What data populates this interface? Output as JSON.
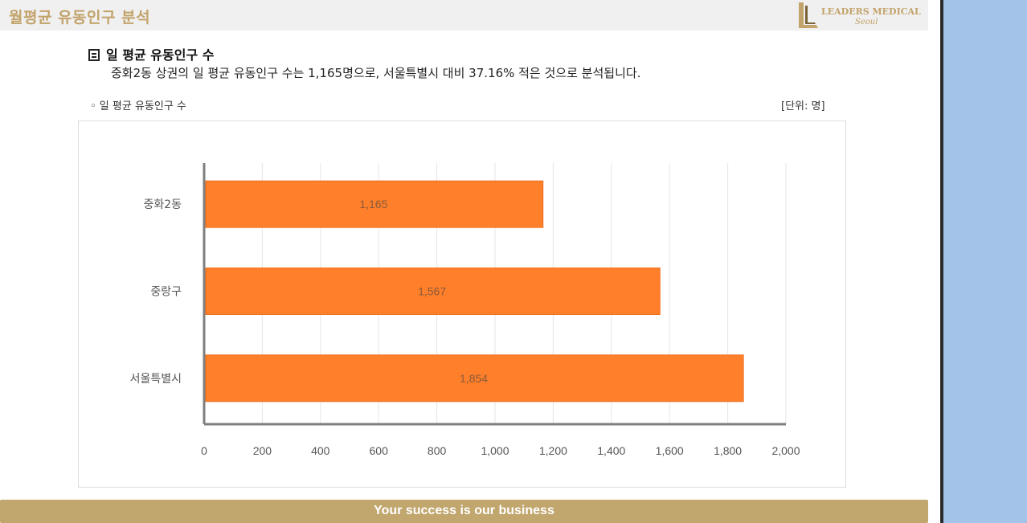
{
  "header": {
    "title": "월평균 유동인구 분석",
    "logo_text": "LEADERS MEDICAL",
    "logo_sub": "Seoul"
  },
  "section": {
    "heading": "일 평균 유동인구 수",
    "description": "중화2동 상권의 일 평균 유동인구 수는 1,165명으로, 서울특별시 대비 37.16% 적은 것으로 분석됩니다."
  },
  "chart_meta": {
    "label": "◦ 일 평균 유동인구 수",
    "unit": "[단위: 명]"
  },
  "chart_data": {
    "type": "bar",
    "orientation": "horizontal",
    "categories": [
      "중화2동",
      "중랑구",
      "서울특별시"
    ],
    "values": [
      1165,
      1567,
      1854
    ],
    "data_labels": [
      "1,165",
      "1,567",
      "1,854"
    ],
    "xlim": [
      0,
      2000
    ],
    "x_ticks": [
      "0",
      "200",
      "400",
      "600",
      "800",
      "1,000",
      "1,200",
      "1,400",
      "1,600",
      "1,800",
      "2,000"
    ],
    "grid": true,
    "bar_color": "#ff7f2a"
  },
  "footer": {
    "text": "Your success is our business"
  },
  "colors": {
    "accent": "#c2a36b",
    "footer_bg": "#c1a66e",
    "right_panel": "#a3c3e8"
  }
}
